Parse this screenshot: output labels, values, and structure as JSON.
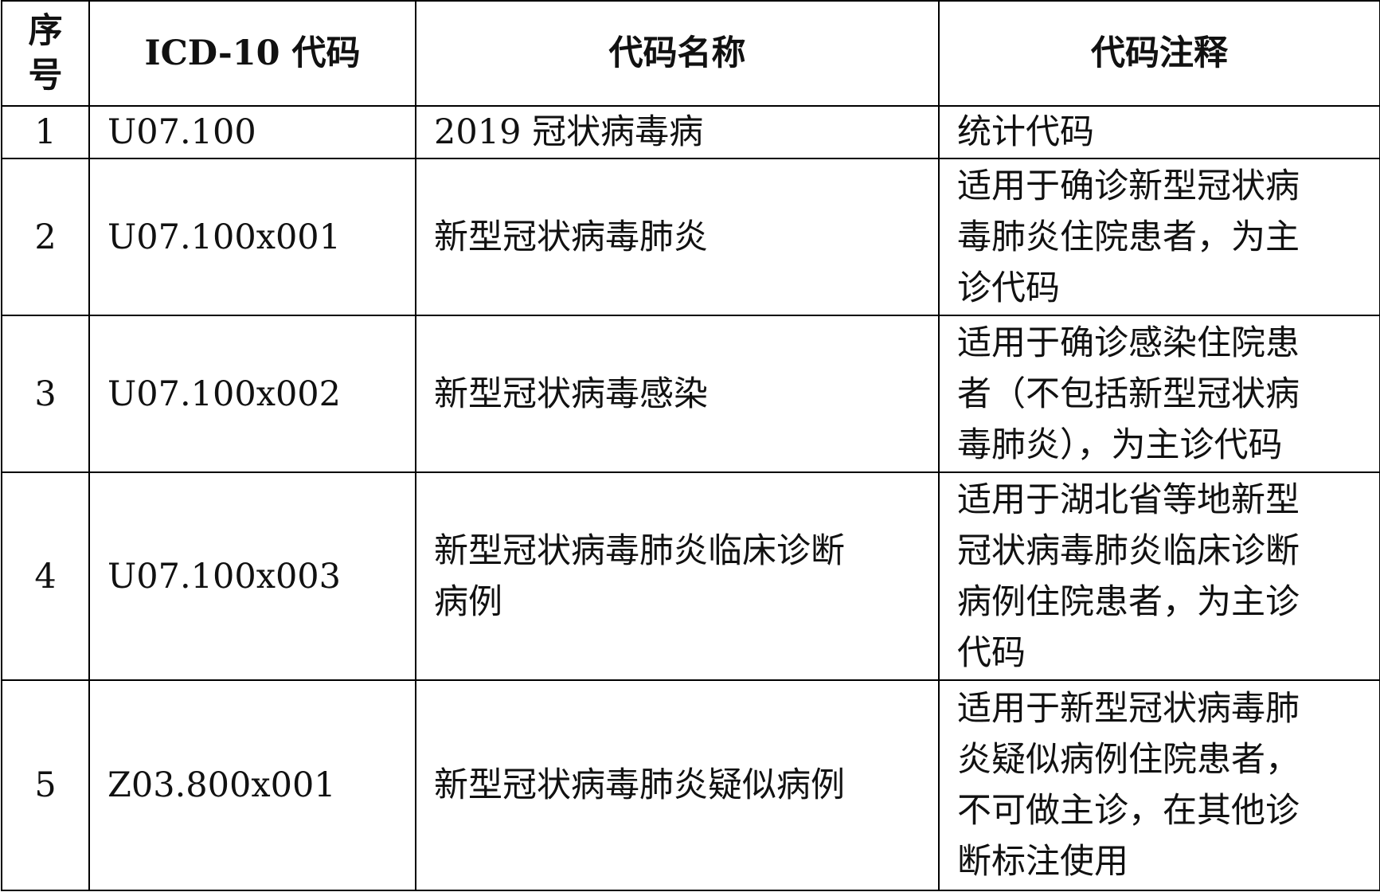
{
  "headers": {
    "index_lines": [
      "序",
      "号"
    ],
    "code": "ICD-10 代码",
    "name": "代码名称",
    "note": "代码注释"
  },
  "rows": [
    {
      "index": "1",
      "code": "U07.100",
      "name_lines": [
        "2019 冠状病毒病"
      ],
      "note_lines": [
        "统计代码"
      ]
    },
    {
      "index": "2",
      "code": "U07.100x001",
      "name_lines": [
        "新型冠状病毒肺炎"
      ],
      "note_lines": [
        "适用于确诊新型冠状病",
        "毒肺炎住院患者，为主",
        "诊代码"
      ]
    },
    {
      "index": "3",
      "code": "U07.100x002",
      "name_lines": [
        "新型冠状病毒感染"
      ],
      "note_lines": [
        "适用于确诊感染住院患",
        "者（不包括新型冠状病",
        "毒肺炎），为主诊代码"
      ]
    },
    {
      "index": "4",
      "code": "U07.100x003",
      "name_lines": [
        "新型冠状病毒肺炎临床诊断",
        "病例"
      ],
      "note_lines": [
        "适用于湖北省等地新型",
        "冠状病毒肺炎临床诊断",
        "病例住院患者，为主诊",
        "代码"
      ]
    },
    {
      "index": "5",
      "code": "Z03.800x001",
      "name_lines": [
        "新型冠状病毒肺炎疑似病例"
      ],
      "note_lines": [
        "适用于新型冠状病毒肺",
        "炎疑似病例住院患者，",
        "不可做主诊，在其他诊",
        "断标注使用"
      ]
    }
  ]
}
